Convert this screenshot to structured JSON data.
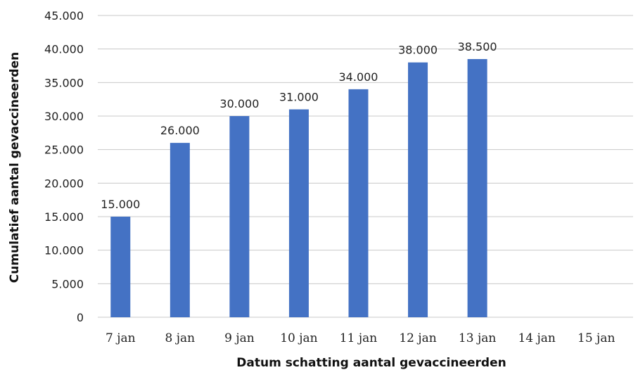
{
  "chart_data": {
    "type": "bar",
    "categories": [
      "7 jan",
      "8 jan",
      "9 jan",
      "10 jan",
      "11 jan",
      "12 jan",
      "13 jan",
      "14 jan",
      "15 jan"
    ],
    "series": [
      {
        "values": [
          15000,
          26000,
          30000,
          31000,
          34000,
          38000,
          38500,
          null,
          null
        ]
      }
    ],
    "data_labels": [
      "15.000",
      "26.000",
      "30.000",
      "31.000",
      "34.000",
      "38.000",
      "38.500",
      "",
      ""
    ],
    "xlabel": "Datum schatting aantal gevaccineerden",
    "ylabel": "Cumulatief aantal gevaccineerden",
    "ylim": [
      0,
      45000
    ],
    "yticks": [
      0,
      5000,
      10000,
      15000,
      20000,
      25000,
      30000,
      35000,
      40000,
      45000
    ],
    "ytick_labels": [
      "0",
      "5.000",
      "10.000",
      "15.000",
      "20.000",
      "25.000",
      "30.000",
      "35.000",
      "40.000",
      "45.000"
    ],
    "grid": true,
    "legend": "none",
    "bar_color": "#4472C4"
  }
}
